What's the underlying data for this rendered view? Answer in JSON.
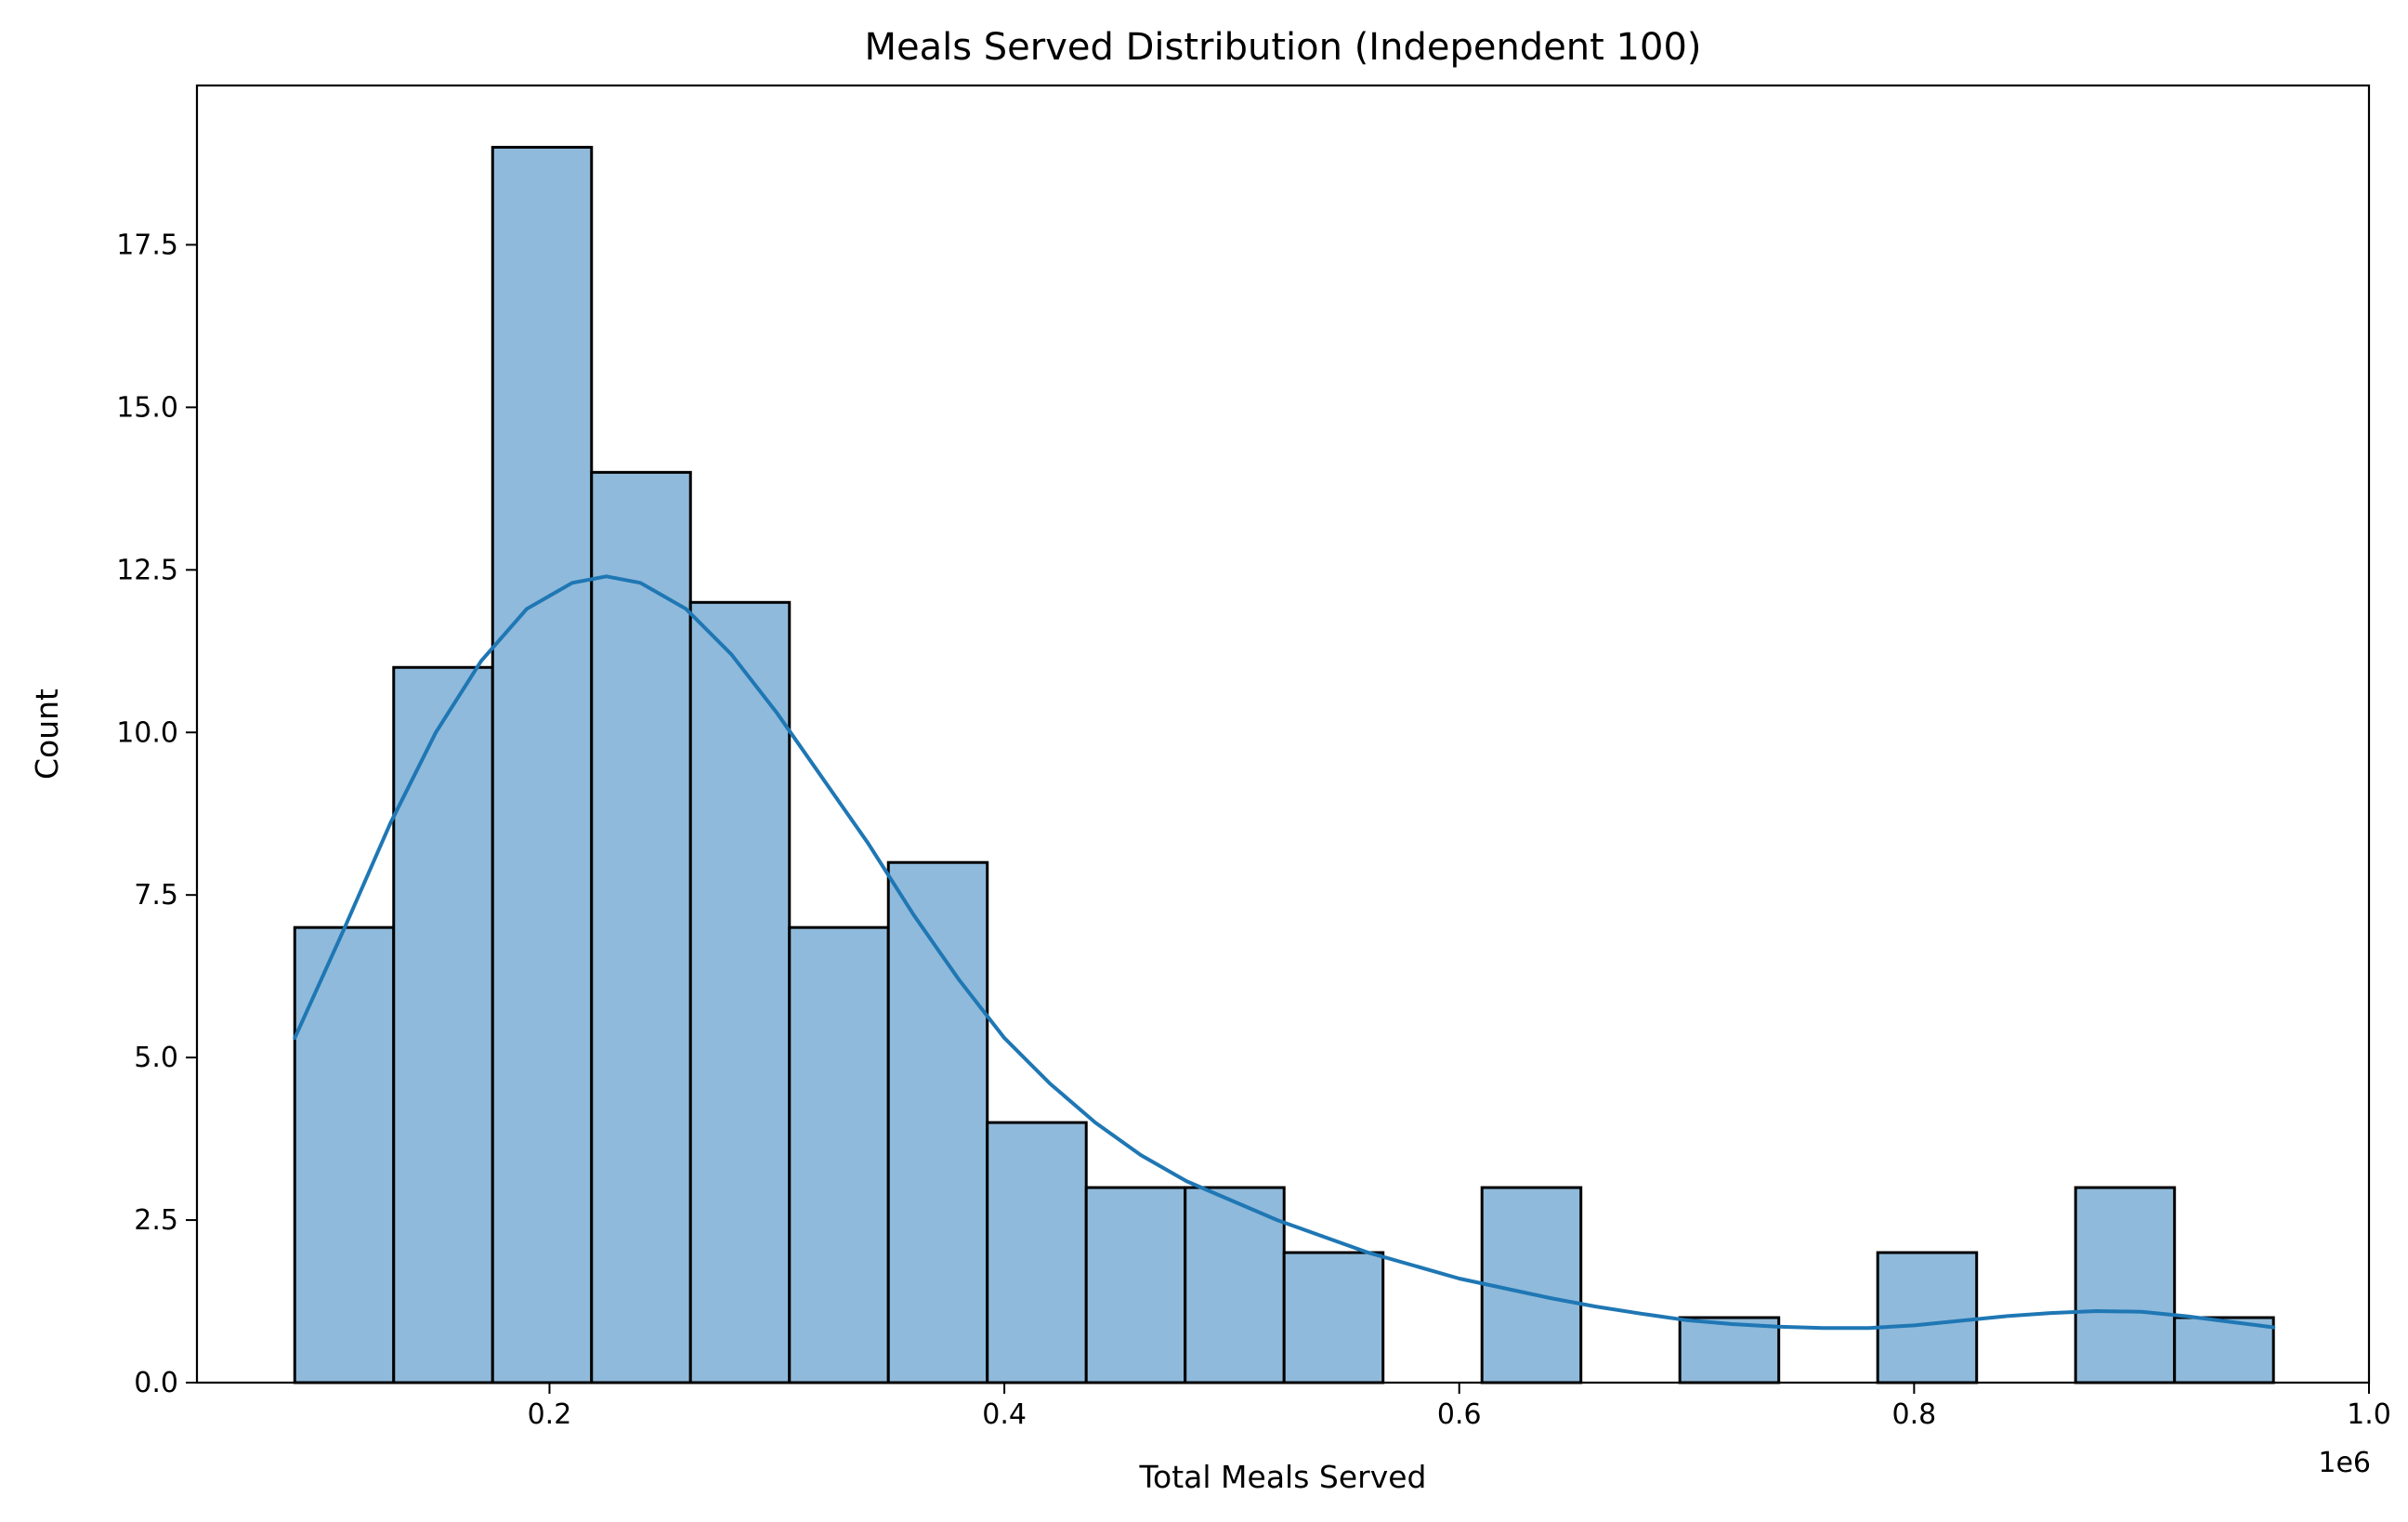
{
  "chart_data": {
    "type": "bar",
    "subtype": "histogram",
    "title": "Meals Served Distribution (Independent 100)",
    "xlabel": "Total Meals Served",
    "ylabel": "Count",
    "x_offset_label": "1e6",
    "xlim": [
      0.045,
      1.0
    ],
    "ylim": [
      0,
      19.95
    ],
    "xticks": [
      0.2,
      0.4,
      0.6,
      0.8,
      1.0
    ],
    "xtick_labels": [
      "0.2",
      "0.4",
      "0.6",
      "0.8",
      "1.0"
    ],
    "yticks": [
      0.0,
      2.5,
      5.0,
      7.5,
      10.0,
      12.5,
      15.0,
      17.5
    ],
    "ytick_labels": [
      "0.0",
      "2.5",
      "5.0",
      "7.5",
      "10.0",
      "12.5",
      "15.0",
      "17.5"
    ],
    "bin_edges": [
      0.088,
      0.1315,
      0.175,
      0.2185,
      0.262,
      0.3055,
      0.349,
      0.3925,
      0.436,
      0.4795,
      0.523,
      0.5665,
      0.61,
      0.6535,
      0.697,
      0.7405,
      0.784,
      0.8275,
      0.871,
      0.9145,
      0.958
    ],
    "counts": [
      7,
      11,
      19,
      14,
      12,
      7,
      8,
      4,
      3,
      3,
      2,
      0,
      3,
      0,
      1,
      0,
      2,
      0,
      3,
      1
    ],
    "kde": {
      "x": [
        0.088,
        0.11,
        0.13,
        0.15,
        0.17,
        0.19,
        0.21,
        0.225,
        0.24,
        0.26,
        0.28,
        0.3,
        0.32,
        0.34,
        0.36,
        0.38,
        0.4,
        0.42,
        0.44,
        0.46,
        0.48,
        0.5,
        0.52,
        0.54,
        0.56,
        0.58,
        0.6,
        0.62,
        0.64,
        0.66,
        0.68,
        0.7,
        0.72,
        0.74,
        0.76,
        0.78,
        0.8,
        0.82,
        0.84,
        0.86,
        0.88,
        0.9,
        0.92,
        0.94,
        0.958
      ],
      "y": [
        5.3,
        7.0,
        8.6,
        10.0,
        11.1,
        11.9,
        12.3,
        12.4,
        12.3,
        11.9,
        11.2,
        10.3,
        9.3,
        8.3,
        7.2,
        6.2,
        5.3,
        4.6,
        4.0,
        3.5,
        3.1,
        2.8,
        2.5,
        2.25,
        2.0,
        1.8,
        1.6,
        1.45,
        1.3,
        1.17,
        1.06,
        0.96,
        0.9,
        0.86,
        0.84,
        0.84,
        0.88,
        0.95,
        1.02,
        1.07,
        1.1,
        1.09,
        1.02,
        0.93,
        0.85
      ]
    },
    "colors": {
      "bar_fill": "#8fbadb",
      "bar_edge": "#000000",
      "kde_line": "#1f77b4"
    },
    "grid": false,
    "legend": "none"
  }
}
